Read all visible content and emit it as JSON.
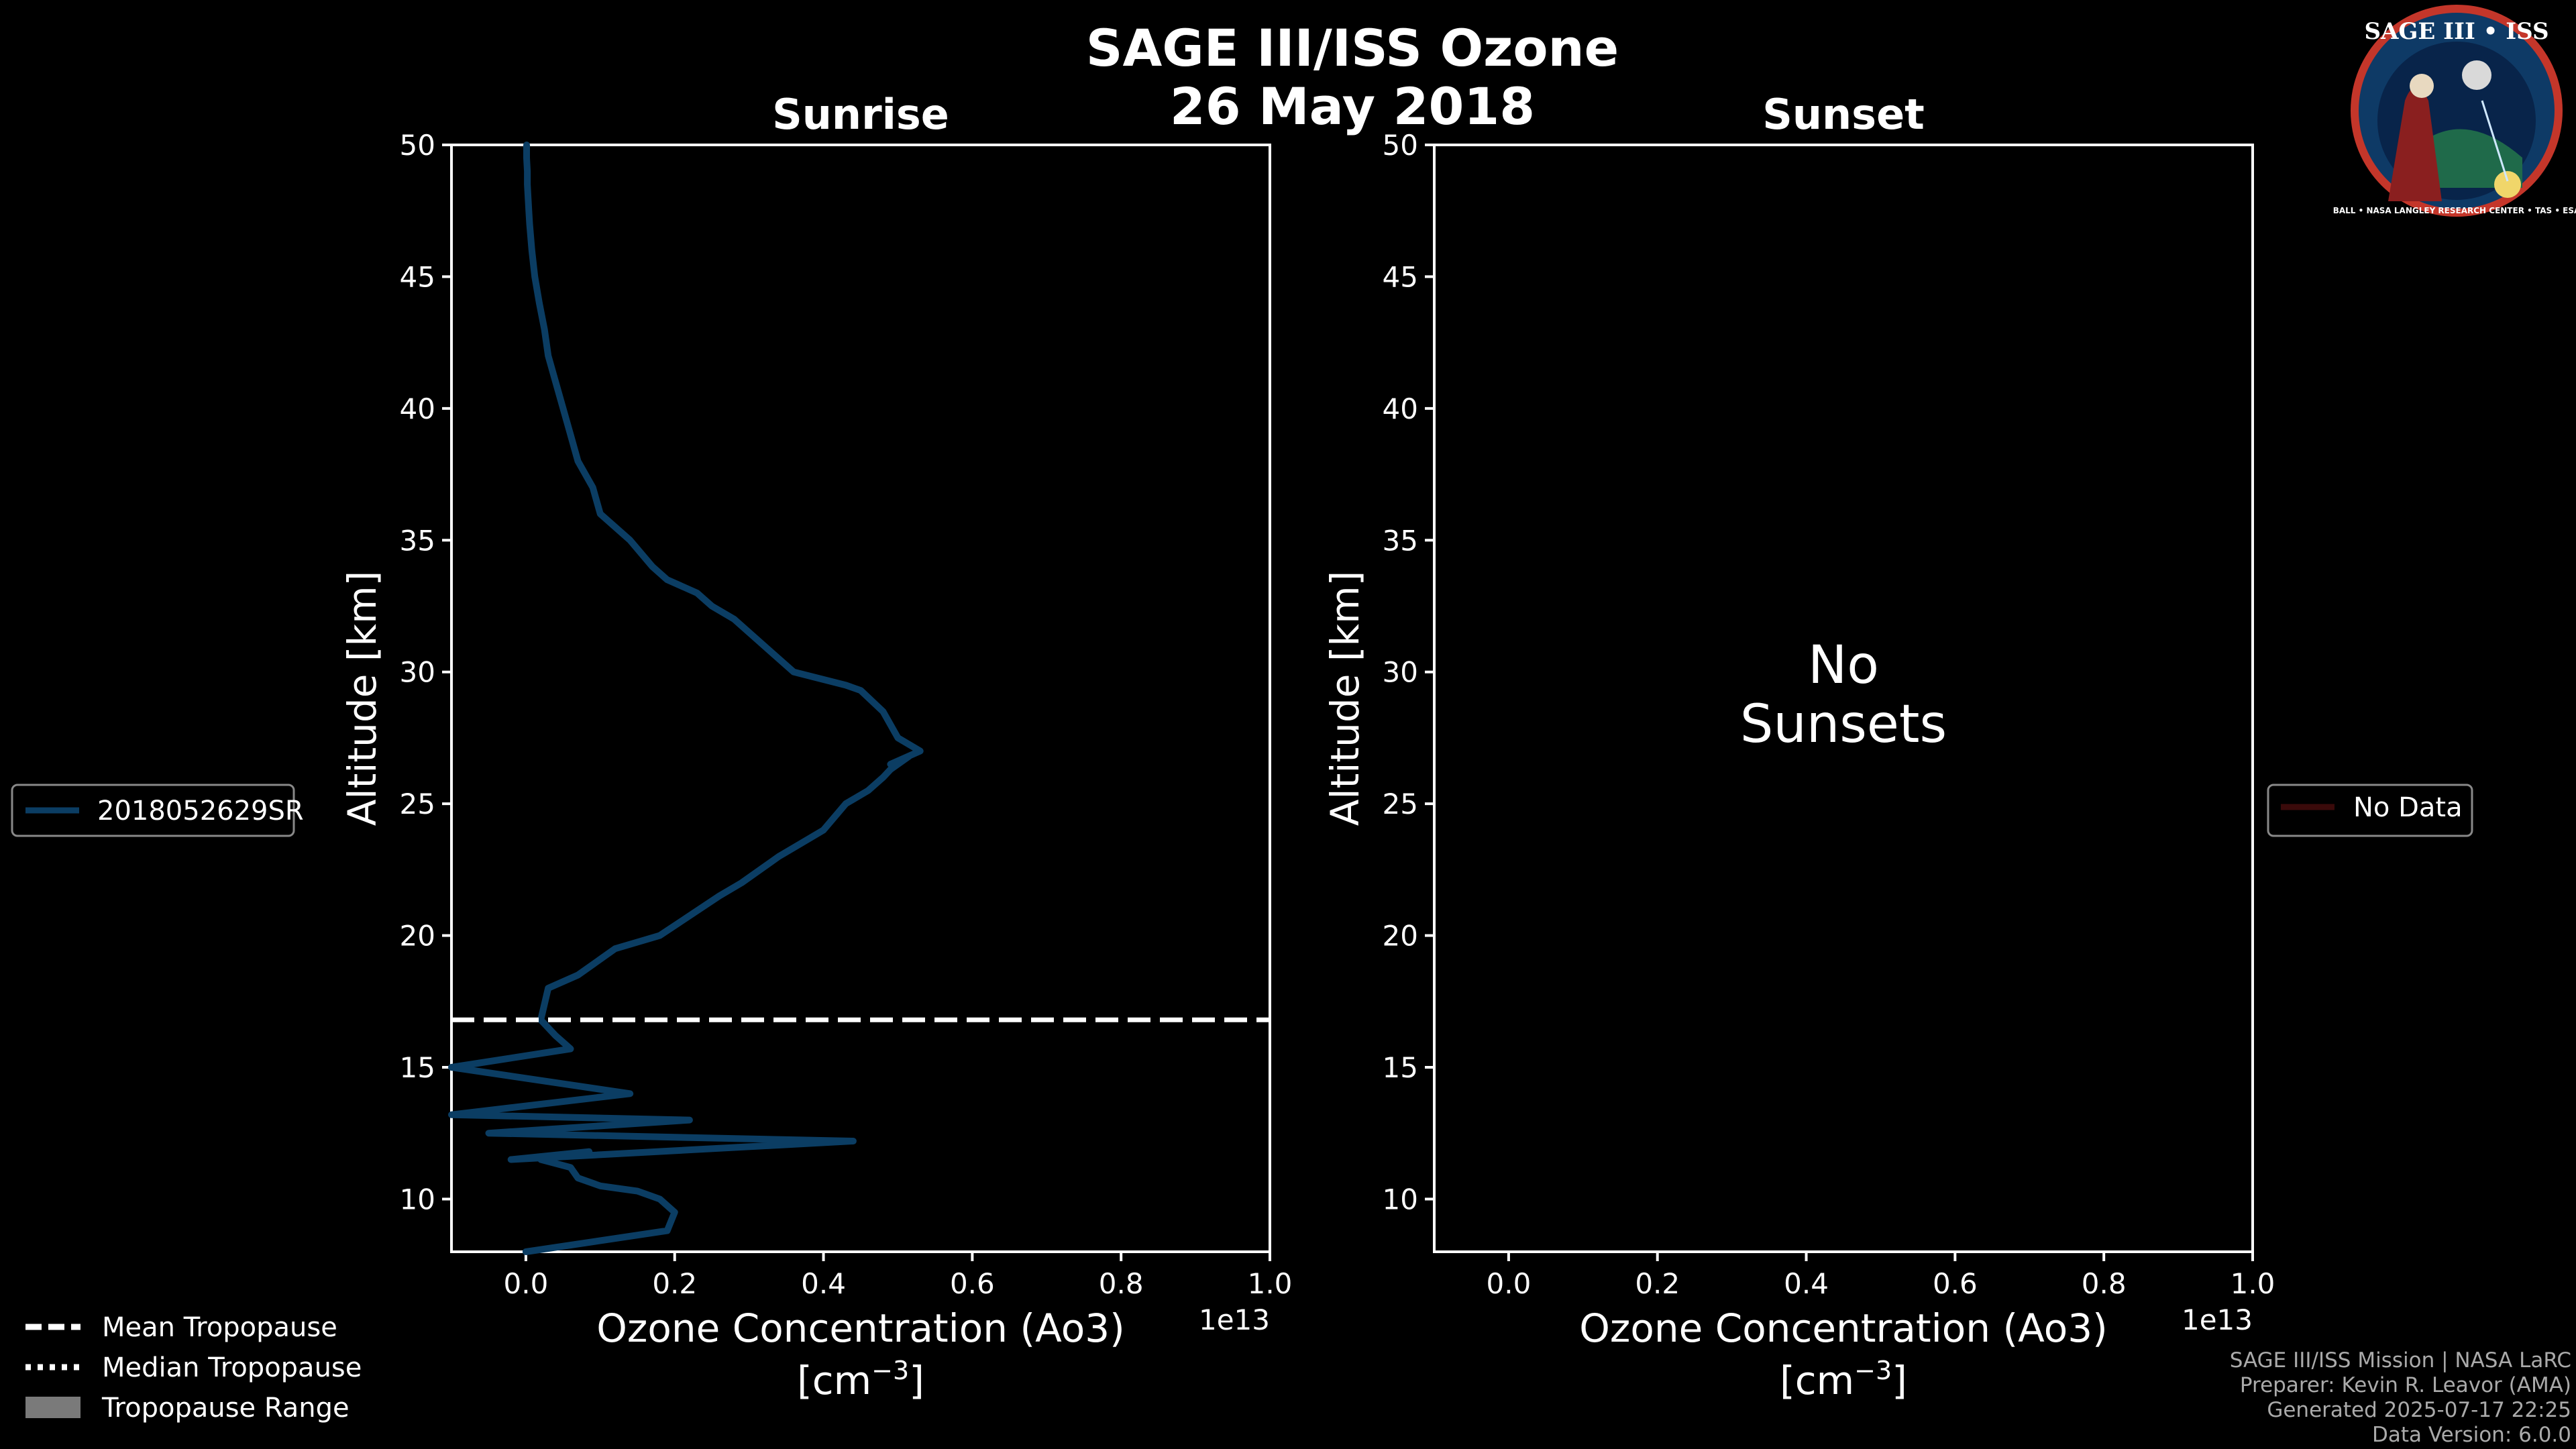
{
  "chart_data": {
    "type": "line",
    "title_line1": "SAGE III/ISS Ozone",
    "title_line2": "26 May 2018",
    "panels": [
      {
        "title": "Sunrise",
        "xlabel_line1": "Ozone Concentration (Ao3)",
        "xlabel_line2_prefix": "[cm",
        "xlabel_line2_exp": "−3",
        "xlabel_line2_suffix": "]",
        "ylabel": "Altitude [km]",
        "x_offset_label": "1e13",
        "xlim": [
          -0.1,
          1.0
        ],
        "ylim": [
          8,
          50
        ],
        "xticks": [
          "0.0",
          "0.2",
          "0.4",
          "0.6",
          "0.8",
          "1.0"
        ],
        "xtick_values": [
          0.0,
          0.2,
          0.4,
          0.6,
          0.8,
          1.0
        ],
        "yticks": [
          "10",
          "15",
          "20",
          "25",
          "30",
          "35",
          "40",
          "45",
          "50"
        ],
        "ytick_values": [
          10,
          15,
          20,
          25,
          30,
          35,
          40,
          45,
          50
        ],
        "mean_tropopause_km": 16.8,
        "series": [
          {
            "name": "2018052629SR",
            "color": "#0b3d63",
            "x": [
              0.0,
              0.19,
              0.2,
              0.18,
              0.15,
              0.1,
              0.07,
              0.06,
              0.02,
              0.085,
              -0.02,
              0.44,
              -0.05,
              0.22,
              -0.1,
              0.14,
              -0.1,
              0.06,
              0.04,
              0.02,
              0.03,
              0.07,
              0.12,
              0.18,
              0.26,
              0.29,
              0.34,
              0.37,
              0.4,
              0.43,
              0.46,
              0.48,
              0.49,
              0.5,
              0.515,
              0.49,
              0.53,
              0.5,
              0.48,
              0.45,
              0.43,
              0.36,
              0.3,
              0.28,
              0.25,
              0.23,
              0.19,
              0.17,
              0.14,
              0.12,
              0.1,
              0.09,
              0.07,
              0.06,
              0.05,
              0.04,
              0.03,
              0.025,
              0.018,
              0.012,
              0.008,
              0.005,
              0.004,
              0.003,
              0.002,
              0.002,
              0.001,
              0.001
            ],
            "y": [
              8,
              8.8,
              9.5,
              10.0,
              10.3,
              10.5,
              10.8,
              11.2,
              11.5,
              11.8,
              11.5,
              12.2,
              12.5,
              13.0,
              13.2,
              14.0,
              15.0,
              15.7,
              16.2,
              16.8,
              18.0,
              18.5,
              19.5,
              20.0,
              21.5,
              22.0,
              23.0,
              23.5,
              24.0,
              25.0,
              25.5,
              26.0,
              26.3,
              26.5,
              26.8,
              26.5,
              27.0,
              27.5,
              28.5,
              29.3,
              29.5,
              30.0,
              31.5,
              32.0,
              32.5,
              33.0,
              33.5,
              34.0,
              35.0,
              35.5,
              36.0,
              37.0,
              38.0,
              39.0,
              40.0,
              41.0,
              42.0,
              43.0,
              44.0,
              45.0,
              46.0,
              47.0,
              47.5,
              48.0,
              48.5,
              49.0,
              49.5,
              50.0
            ]
          }
        ],
        "legend": {
          "label": "2018052629SR",
          "placement": "left",
          "color": "#0b3d63"
        }
      },
      {
        "title": "Sunset",
        "xlabel_line1": "Ozone Concentration (Ao3)",
        "xlabel_line2_prefix": "[cm",
        "xlabel_line2_exp": "−3",
        "xlabel_line2_suffix": "]",
        "ylabel": "Altitude [km]",
        "x_offset_label": "1e13",
        "xlim": [
          -0.1,
          1.0
        ],
        "ylim": [
          8,
          50
        ],
        "xticks": [
          "0.0",
          "0.2",
          "0.4",
          "0.6",
          "0.8",
          "1.0"
        ],
        "xtick_values": [
          0.0,
          0.2,
          0.4,
          0.6,
          0.8,
          1.0
        ],
        "yticks": [
          "10",
          "15",
          "20",
          "25",
          "30",
          "35",
          "40",
          "45",
          "50"
        ],
        "ytick_values": [
          10,
          15,
          20,
          25,
          30,
          35,
          40,
          45,
          50
        ],
        "no_data_line1": "No",
        "no_data_line2": "Sunsets",
        "series": [],
        "legend": {
          "label": "No Data",
          "placement": "right",
          "color": "#3a0a0a"
        }
      }
    ],
    "bottom_legend": [
      {
        "label": "Mean Tropopause",
        "style": "dashed"
      },
      {
        "label": "Median Tropopause",
        "style": "dotted"
      },
      {
        "label": "Tropopause Range",
        "style": "patch"
      }
    ]
  },
  "footer": {
    "line1": "SAGE III/ISS Mission | NASA LaRC",
    "line2": "Preparer: Kevin R. Leavor (AMA)",
    "line3": "Generated 2025-07-17 22:25",
    "line4": "Data Version: 6.0.0"
  },
  "logo": {
    "text": "SAGE III • ISS",
    "ring_text": "BALL • NASA LANGLEY RESEARCH CENTER • TAS • ESA"
  },
  "colors": {
    "background": "#000000",
    "axes": "#ffffff",
    "sunrise_line": "#0b3d63",
    "tropopause": "#ffffff",
    "patch": "#7a7a7a"
  }
}
